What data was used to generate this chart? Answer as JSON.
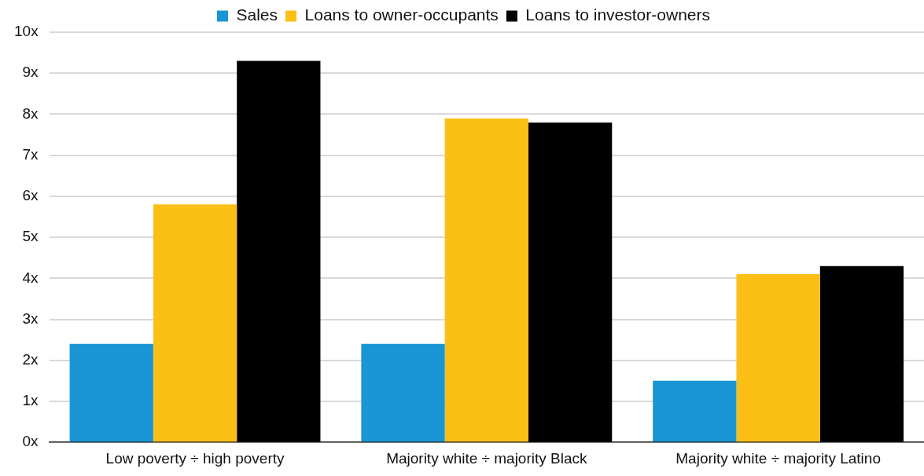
{
  "chart_data": {
    "type": "bar",
    "categories": [
      "Low poverty ÷ high poverty",
      "Majority white ÷ majority Black",
      "Majority white ÷ majority Latino"
    ],
    "series": [
      {
        "name": "Sales",
        "color": "#1a96d4",
        "values": [
          2.4,
          2.4,
          1.5
        ]
      },
      {
        "name": "Loans to owner-occupants",
        "color": "#fbbf16",
        "values": [
          5.8,
          7.9,
          4.1
        ]
      },
      {
        "name": "Loans to investor-owners",
        "color": "#000000",
        "values": [
          9.3,
          7.8,
          4.3
        ]
      }
    ],
    "ylim": [
      0,
      10
    ],
    "yticks": [
      {
        "value": 0,
        "label": "0x"
      },
      {
        "value": 1,
        "label": "1x"
      },
      {
        "value": 2,
        "label": "2x"
      },
      {
        "value": 3,
        "label": "3x"
      },
      {
        "value": 4,
        "label": "4x"
      },
      {
        "value": 5,
        "label": "5x"
      },
      {
        "value": 6,
        "label": "6x"
      },
      {
        "value": 7,
        "label": "7x"
      },
      {
        "value": 8,
        "label": "8x"
      },
      {
        "value": 9,
        "label": "9x"
      },
      {
        "value": 10,
        "label": "10x"
      }
    ],
    "grid": "y",
    "legend": "top"
  }
}
